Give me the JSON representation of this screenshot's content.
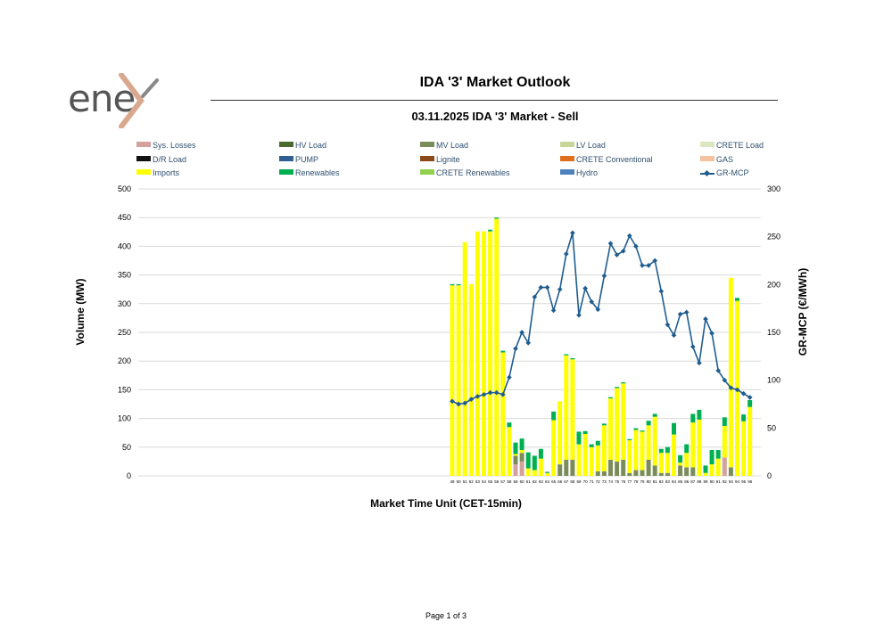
{
  "logo": {
    "text": "ene",
    "accent_color": "#d9a88e",
    "text_color": "#555555"
  },
  "page_title": "IDA '3' Market Outlook",
  "footer": "Page 1 of 3",
  "chart_data": {
    "type": "bar",
    "title": "03.11.2025  IDA '3' Market - Sell",
    "xlabel": "Market Time Unit (CET-15min)",
    "ylabel": "Volume (MW)",
    "y2label": "GR-MCP (€/MWh)",
    "ylim": [
      0,
      500
    ],
    "y2lim": [
      0,
      300
    ],
    "yticks": [
      "0",
      "50",
      "100",
      "150",
      "200",
      "250",
      "300",
      "350",
      "400",
      "450",
      "500"
    ],
    "y2ticks": [
      "0",
      "50",
      "100",
      "150",
      "200",
      "250",
      "300"
    ],
    "grid": true,
    "legend_position": "top",
    "stacked": true,
    "categories": [
      "49",
      "50",
      "51",
      "52",
      "53",
      "54",
      "55",
      "56",
      "57",
      "58",
      "59",
      "60",
      "61",
      "62",
      "63",
      "64",
      "65",
      "66",
      "67",
      "68",
      "69",
      "70",
      "71",
      "72",
      "73",
      "74",
      "75",
      "76",
      "77",
      "78",
      "79",
      "80",
      "81",
      "82",
      "83",
      "84",
      "85",
      "86",
      "87",
      "88",
      "89",
      "90",
      "91",
      "92",
      "93",
      "94",
      "95",
      "96"
    ],
    "series": [
      {
        "name": "Sys. Losses",
        "color": "#d4a29c",
        "values": [
          0,
          0,
          0,
          0,
          0,
          0,
          0,
          0,
          0,
          0,
          20,
          25,
          0,
          0,
          0,
          0,
          0,
          0,
          0,
          0,
          0,
          0,
          0,
          0,
          0,
          0,
          0,
          0,
          0,
          0,
          0,
          0,
          0,
          0,
          0,
          0,
          0,
          0,
          0,
          0,
          0,
          0,
          0,
          32,
          0,
          0,
          0,
          0
        ]
      },
      {
        "name": "HV Load",
        "color": "#4b6a2e",
        "values": [
          0,
          0,
          0,
          0,
          0,
          0,
          0,
          0,
          0,
          0,
          0,
          0,
          0,
          0,
          0,
          0,
          0,
          0,
          0,
          0,
          0,
          0,
          0,
          0,
          0,
          0,
          0,
          0,
          0,
          0,
          0,
          0,
          0,
          0,
          0,
          0,
          0,
          0,
          0,
          0,
          0,
          0,
          0,
          0,
          0,
          0,
          0,
          0
        ]
      },
      {
        "name": "MV Load",
        "color": "#7a8c5a",
        "values": [
          0,
          0,
          0,
          0,
          0,
          0,
          0,
          0,
          0,
          0,
          15,
          15,
          0,
          0,
          0,
          0,
          0,
          20,
          28,
          28,
          0,
          0,
          0,
          8,
          8,
          28,
          25,
          28,
          5,
          10,
          10,
          28,
          18,
          5,
          5,
          0,
          18,
          15,
          15,
          0,
          0,
          0,
          0,
          0,
          15,
          0,
          0,
          0
        ]
      },
      {
        "name": "LV Load",
        "color": "#c7d79a",
        "values": [
          0,
          0,
          0,
          0,
          0,
          0,
          0,
          0,
          0,
          0,
          0,
          0,
          0,
          0,
          0,
          0,
          0,
          0,
          0,
          0,
          0,
          0,
          0,
          0,
          0,
          0,
          0,
          0,
          0,
          0,
          0,
          0,
          0,
          0,
          0,
          0,
          0,
          0,
          0,
          0,
          0,
          0,
          0,
          0,
          0,
          0,
          0,
          0
        ]
      },
      {
        "name": "CRETE Load",
        "color": "#d9e8c0",
        "values": [
          0,
          0,
          0,
          0,
          0,
          0,
          0,
          0,
          0,
          0,
          0,
          0,
          0,
          0,
          0,
          0,
          0,
          0,
          0,
          0,
          0,
          0,
          0,
          0,
          0,
          0,
          0,
          0,
          0,
          0,
          0,
          0,
          0,
          0,
          0,
          0,
          0,
          0,
          0,
          0,
          0,
          0,
          0,
          0,
          0,
          0,
          0,
          0
        ]
      },
      {
        "name": "D/R Load",
        "color": "#111111",
        "values": [
          0,
          0,
          0,
          0,
          0,
          0,
          0,
          0,
          0,
          0,
          0,
          0,
          0,
          0,
          0,
          0,
          0,
          0,
          0,
          0,
          0,
          0,
          0,
          0,
          0,
          0,
          0,
          0,
          0,
          0,
          0,
          0,
          0,
          0,
          0,
          0,
          0,
          0,
          0,
          0,
          0,
          0,
          0,
          0,
          0,
          0,
          0,
          0
        ]
      },
      {
        "name": "PUMP",
        "color": "#2e5f8f",
        "values": [
          0,
          0,
          0,
          0,
          0,
          0,
          0,
          0,
          0,
          0,
          0,
          0,
          0,
          0,
          0,
          0,
          0,
          0,
          0,
          0,
          0,
          0,
          0,
          0,
          0,
          0,
          0,
          0,
          0,
          0,
          0,
          0,
          0,
          0,
          0,
          0,
          0,
          0,
          0,
          0,
          0,
          0,
          0,
          0,
          0,
          0,
          0,
          0
        ]
      },
      {
        "name": "Lignite",
        "color": "#8b4a1a",
        "values": [
          0,
          0,
          0,
          0,
          0,
          0,
          0,
          0,
          0,
          0,
          0,
          0,
          0,
          0,
          0,
          0,
          0,
          0,
          0,
          0,
          0,
          0,
          0,
          0,
          0,
          0,
          0,
          0,
          0,
          0,
          0,
          0,
          0,
          0,
          0,
          0,
          0,
          0,
          0,
          0,
          0,
          0,
          0,
          0,
          0,
          0,
          0,
          0
        ]
      },
      {
        "name": "CRETE Conventional",
        "color": "#e07020",
        "values": [
          0,
          0,
          0,
          0,
          0,
          0,
          0,
          0,
          0,
          0,
          0,
          0,
          0,
          0,
          0,
          0,
          0,
          0,
          0,
          0,
          0,
          0,
          0,
          0,
          0,
          0,
          0,
          0,
          0,
          0,
          0,
          0,
          0,
          0,
          0,
          0,
          0,
          0,
          0,
          0,
          0,
          0,
          0,
          0,
          0,
          0,
          0,
          0
        ]
      },
      {
        "name": "GAS",
        "color": "#f5c2a0",
        "values": [
          0,
          0,
          0,
          0,
          0,
          0,
          0,
          0,
          0,
          0,
          0,
          0,
          0,
          0,
          0,
          0,
          0,
          0,
          0,
          0,
          0,
          0,
          0,
          0,
          0,
          0,
          0,
          0,
          0,
          0,
          0,
          0,
          0,
          0,
          0,
          0,
          0,
          0,
          0,
          0,
          0,
          0,
          0,
          0,
          0,
          0,
          0,
          0
        ]
      },
      {
        "name": "Imports",
        "color": "#ffff00",
        "values": [
          332,
          332,
          407,
          334,
          426,
          426,
          426,
          448,
          215,
          85,
          3,
          5,
          13,
          10,
          30,
          5,
          97,
          110,
          182,
          175,
          55,
          73,
          50,
          45,
          80,
          107,
          128,
          133,
          57,
          70,
          67,
          60,
          85,
          35,
          35,
          72,
          5,
          25,
          78,
          98,
          5,
          20,
          30,
          55,
          330,
          305,
          95,
          120
        ]
      },
      {
        "name": "Renewables",
        "color": "#00b050",
        "values": [
          2,
          2,
          0,
          0,
          0,
          0,
          3,
          2,
          3,
          8,
          20,
          20,
          28,
          25,
          17,
          2,
          15,
          0,
          2,
          2,
          22,
          5,
          5,
          8,
          3,
          2,
          2,
          2,
          2,
          3,
          2,
          8,
          5,
          7,
          10,
          20,
          13,
          15,
          15,
          17,
          13,
          25,
          15,
          15,
          0,
          5,
          12,
          12
        ]
      },
      {
        "name": "CRETE Renewables",
        "color": "#92d050",
        "values": [
          0,
          0,
          0,
          0,
          0,
          0,
          0,
          0,
          0,
          0,
          0,
          0,
          0,
          0,
          0,
          0,
          0,
          0,
          0,
          0,
          0,
          0,
          0,
          0,
          0,
          0,
          0,
          0,
          0,
          0,
          0,
          0,
          0,
          0,
          0,
          0,
          0,
          0,
          0,
          0,
          0,
          0,
          0,
          0,
          0,
          0,
          0,
          0
        ]
      },
      {
        "name": "Hydro",
        "color": "#4f81bd",
        "values": [
          0,
          0,
          0,
          0,
          0,
          0,
          0,
          0,
          0,
          0,
          0,
          0,
          0,
          0,
          0,
          0,
          0,
          0,
          0,
          0,
          0,
          0,
          0,
          0,
          0,
          0,
          0,
          0,
          0,
          0,
          0,
          0,
          0,
          0,
          0,
          0,
          0,
          0,
          0,
          0,
          0,
          0,
          0,
          0,
          0,
          0,
          0,
          0
        ]
      }
    ],
    "line": {
      "name": "GR-MCP",
      "color": "#1f5d8f",
      "axis": "right",
      "values": [
        78,
        75,
        76,
        80,
        83,
        85,
        87,
        87,
        85,
        103,
        133,
        150,
        139,
        187,
        197,
        197,
        173,
        195,
        232,
        254,
        168,
        196,
        182,
        174,
        209,
        243,
        231,
        235,
        251,
        240,
        220,
        220,
        225,
        193,
        158,
        147,
        169,
        171,
        135,
        118,
        164,
        149,
        110,
        100,
        92,
        90,
        86,
        82
      ]
    }
  }
}
